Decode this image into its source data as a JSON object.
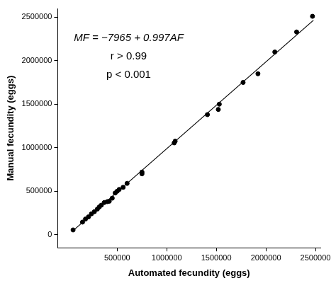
{
  "chart_data": {
    "type": "scatter",
    "x_label": "Automated fecundity (eggs)",
    "y_label": "Manual fecundity (eggs)",
    "annotations": [
      "MF = −7965 + 0.997AF",
      "r > 0.99",
      "p < 0.001"
    ],
    "x": [
      55000,
      150000,
      180000,
      210000,
      240000,
      270000,
      300000,
      320000,
      340000,
      370000,
      400000,
      420000,
      450000,
      480000,
      500000,
      520000,
      560000,
      600000,
      750000,
      750000,
      1075000,
      1085000,
      1410000,
      1520000,
      1530000,
      1770000,
      1920000,
      2090000,
      2310000,
      2470000
    ],
    "values": [
      55000,
      145000,
      180000,
      205000,
      240000,
      265000,
      295000,
      320000,
      340000,
      370000,
      380000,
      385000,
      420000,
      480000,
      500000,
      520000,
      545000,
      590000,
      700000,
      720000,
      1055000,
      1075000,
      1380000,
      1440000,
      1500000,
      1750000,
      1850000,
      2100000,
      2330000,
      2510000
    ],
    "color": "#000000",
    "marker": "circle",
    "fit_line": {
      "x": [
        50000,
        2480000
      ],
      "values": [
        42000,
        2465000
      ],
      "color": "#000000",
      "line_style": "solid"
    },
    "xlim": [
      -100000,
      2550000
    ],
    "xticks": [
      500000,
      1000000,
      1500000,
      2000000,
      2500000
    ],
    "ylim": [
      -150000,
      2600000
    ],
    "yticks": [
      0,
      500000,
      1000000,
      1500000,
      2000000,
      2500000
    ],
    "grid": false
  }
}
